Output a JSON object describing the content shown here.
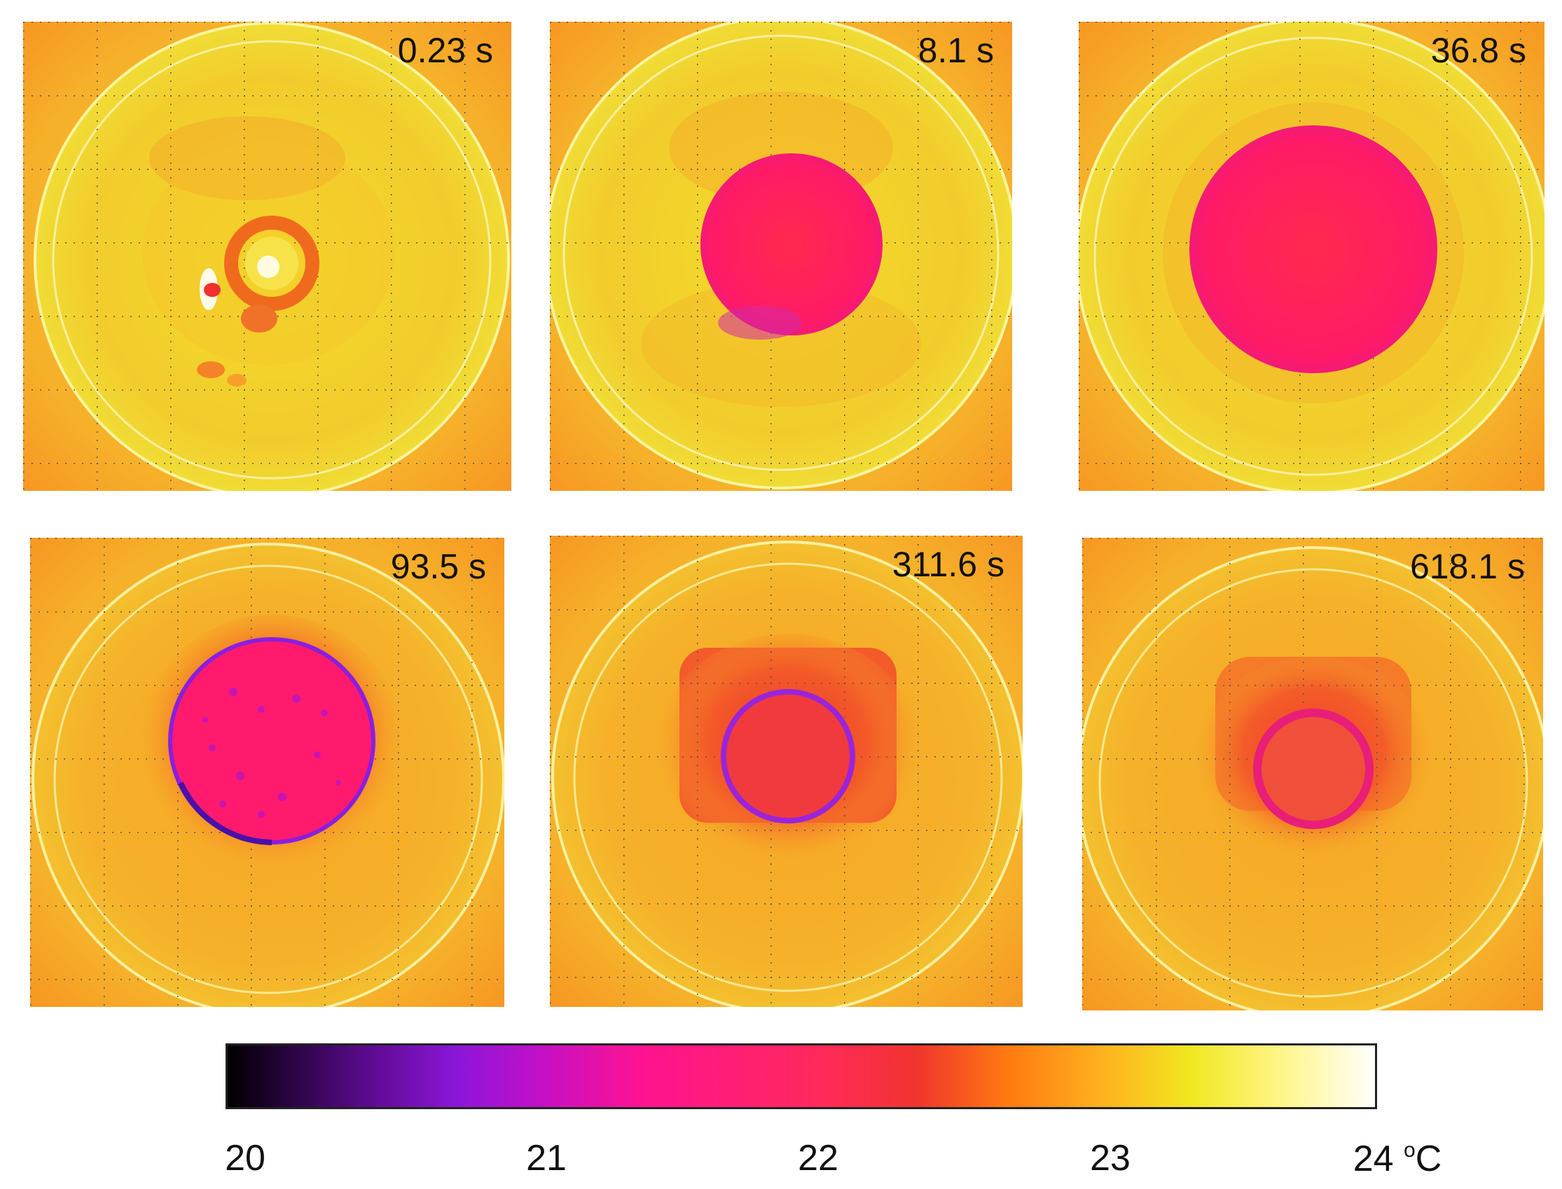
{
  "figure": {
    "panels": [
      {
        "time": "0.23 s"
      },
      {
        "time": "8.1 s"
      },
      {
        "time": "36.8 s"
      },
      {
        "time": "93.5 s"
      },
      {
        "time": "311.6 s"
      },
      {
        "time": "618.1 s"
      }
    ],
    "colorbar": {
      "ticks": [
        "20",
        "21",
        "22",
        "23",
        "24"
      ],
      "unit": "C",
      "unit_degree": "o"
    }
  },
  "colors": {
    "background_warm": "#f6b426",
    "plate_yellow": "#f2d72a",
    "drop_pink": "#ff1f62",
    "ring_purple": "#9024d8",
    "shadow_red": "#f0442e"
  }
}
